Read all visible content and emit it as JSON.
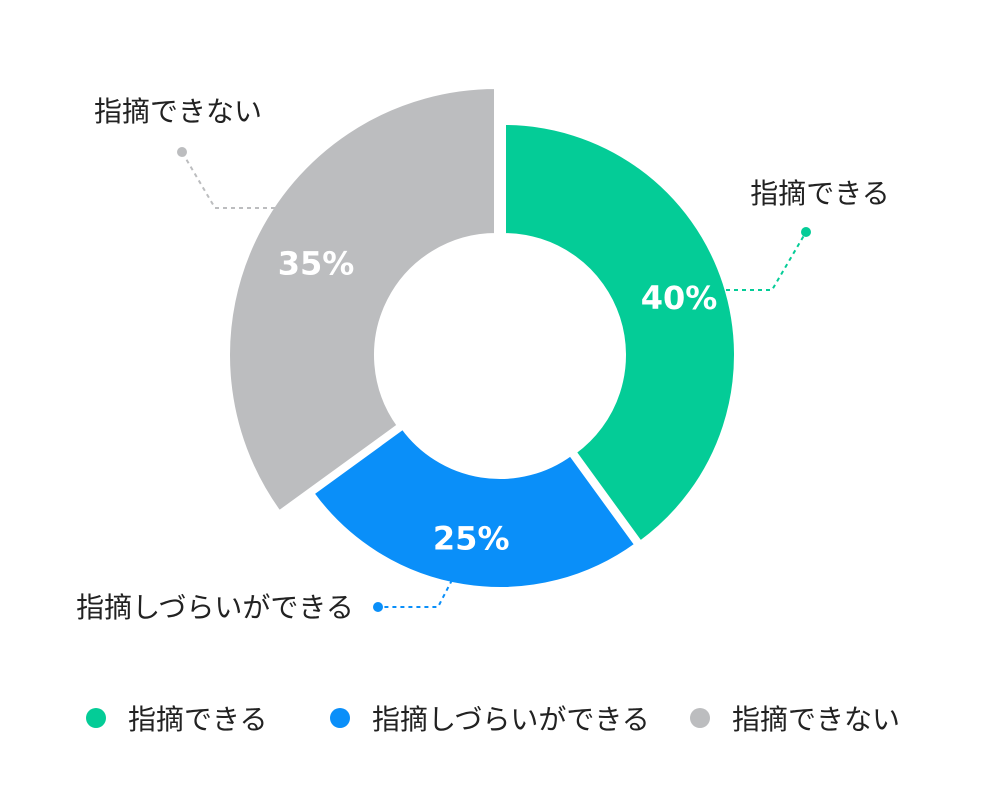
{
  "chart_data": {
    "type": "pie",
    "variant": "donut",
    "title": "",
    "legend_position": "bottom",
    "categories": [
      "指摘できる",
      "指摘しづらいができる",
      "指摘できない"
    ],
    "values": [
      40,
      25,
      35
    ],
    "value_labels": [
      "40%",
      "25%",
      "35%"
    ],
    "callout_labels": [
      "指摘できる",
      "指摘しづらいができる",
      "指摘できない"
    ],
    "colors": [
      "#04cc97",
      "#0a8ff9",
      "#bcbdbf"
    ]
  },
  "legend": {
    "items": [
      {
        "label": "指摘できる",
        "color": "#04cc97"
      },
      {
        "label": "指摘しづらいができる",
        "color": "#0a8ff9"
      },
      {
        "label": "指摘できない",
        "color": "#bcbdbf"
      }
    ]
  }
}
